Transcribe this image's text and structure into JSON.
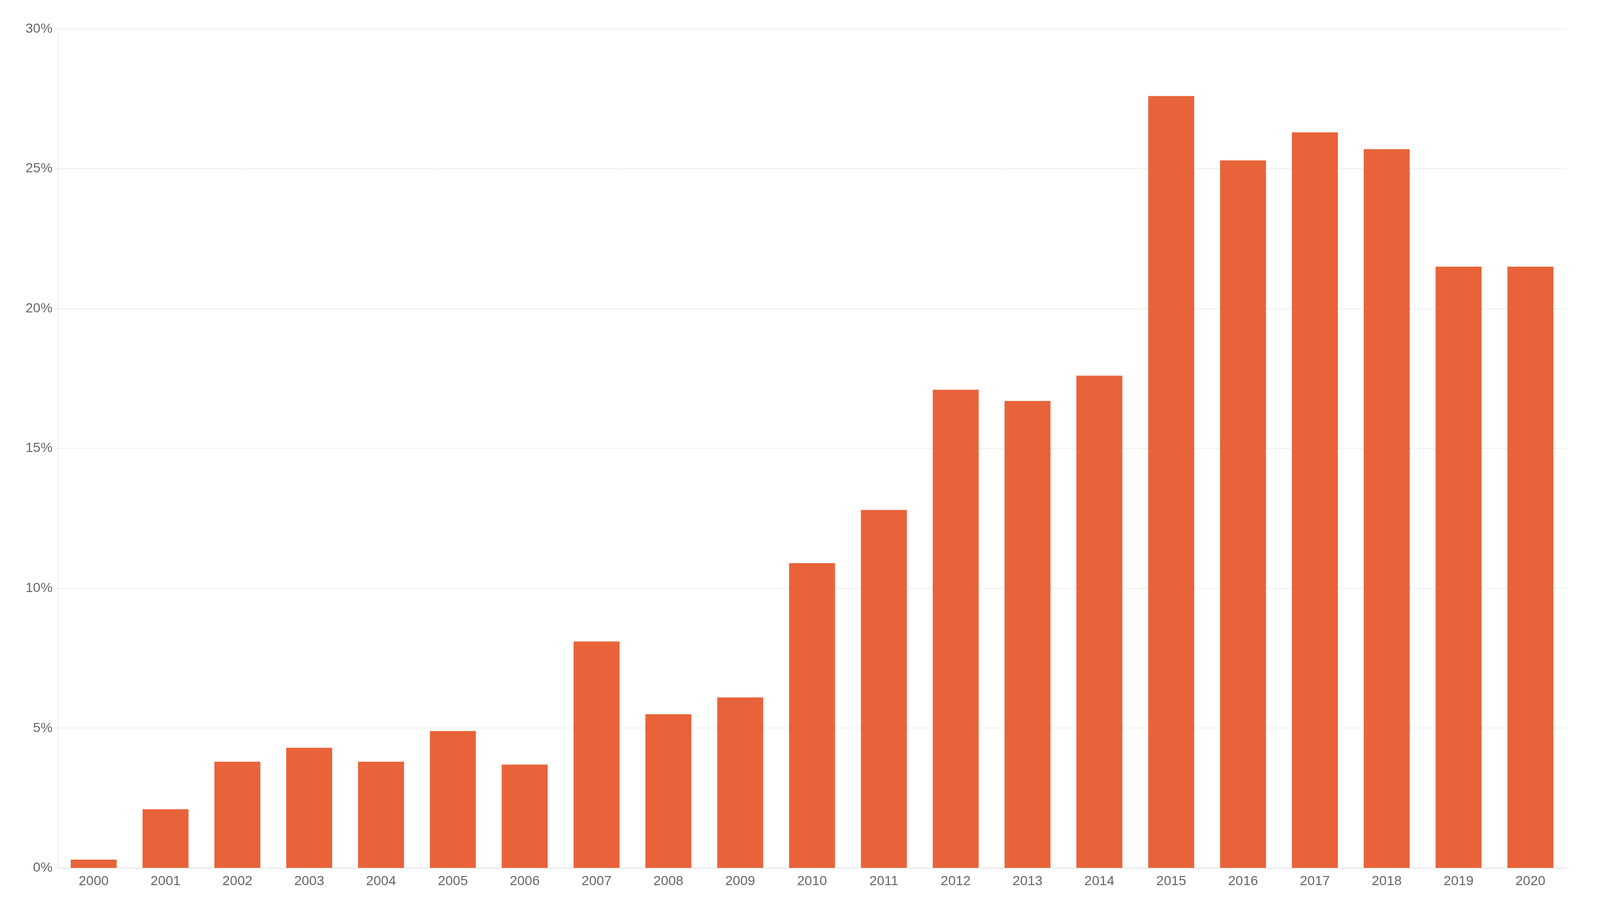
{
  "chart_data": {
    "type": "bar",
    "categories": [
      "2000",
      "2001",
      "2002",
      "2003",
      "2004",
      "2005",
      "2006",
      "2007",
      "2008",
      "2009",
      "2010",
      "2011",
      "2012",
      "2013",
      "2014",
      "2015",
      "2016",
      "2017",
      "2018",
      "2019",
      "2020"
    ],
    "values": [
      0.3,
      2.1,
      3.8,
      4.3,
      3.8,
      4.9,
      3.7,
      8.1,
      5.5,
      6.1,
      10.9,
      12.8,
      17.1,
      16.7,
      17.6,
      27.6,
      25.3,
      26.3,
      25.7,
      21.5,
      21.5
    ],
    "color": "#E8633A",
    "ylim": [
      0,
      30
    ],
    "yticks": [
      {
        "value": 0,
        "label": "0%"
      },
      {
        "value": 5,
        "label": "5%"
      },
      {
        "value": 10,
        "label": "10%"
      },
      {
        "value": 15,
        "label": "15%"
      },
      {
        "value": 20,
        "label": "20%"
      },
      {
        "value": 25,
        "label": "25%"
      },
      {
        "value": 30,
        "label": "30%"
      }
    ],
    "grid": true
  }
}
